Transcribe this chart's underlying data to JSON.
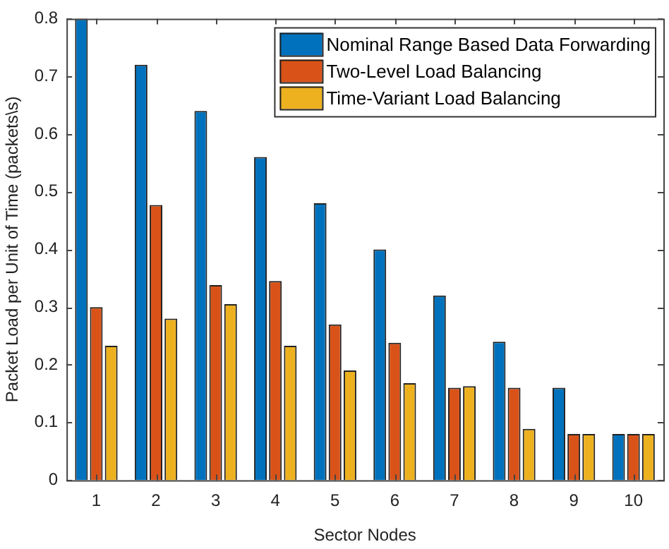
{
  "chart_data": {
    "type": "bar",
    "xlabel": "Sector Nodes",
    "ylabel": "Packet Load per Unit of Time (packets\\s)",
    "categories": [
      "1",
      "2",
      "3",
      "4",
      "5",
      "6",
      "7",
      "8",
      "9",
      "10"
    ],
    "series": [
      {
        "name": "Nominal Range Based Data Forwarding",
        "color": "#0072bd",
        "values": [
          0.8,
          0.72,
          0.64,
          0.56,
          0.48,
          0.4,
          0.32,
          0.24,
          0.16,
          0.08
        ]
      },
      {
        "name": "Two-Level Load Balancing",
        "color": "#d95319",
        "values": [
          0.3,
          0.477,
          0.338,
          0.345,
          0.27,
          0.238,
          0.16,
          0.16,
          0.08,
          0.08
        ]
      },
      {
        "name": "Time-Variant Load Balancing",
        "color": "#edb120",
        "values": [
          0.233,
          0.28,
          0.305,
          0.233,
          0.19,
          0.168,
          0.163,
          0.089,
          0.08,
          0.08
        ]
      }
    ],
    "ylim": [
      0,
      0.8
    ],
    "yticks": [
      0,
      0.1,
      0.2,
      0.3,
      0.4,
      0.5,
      0.6,
      0.7,
      0.8
    ],
    "grid": false,
    "legend": "top right"
  }
}
